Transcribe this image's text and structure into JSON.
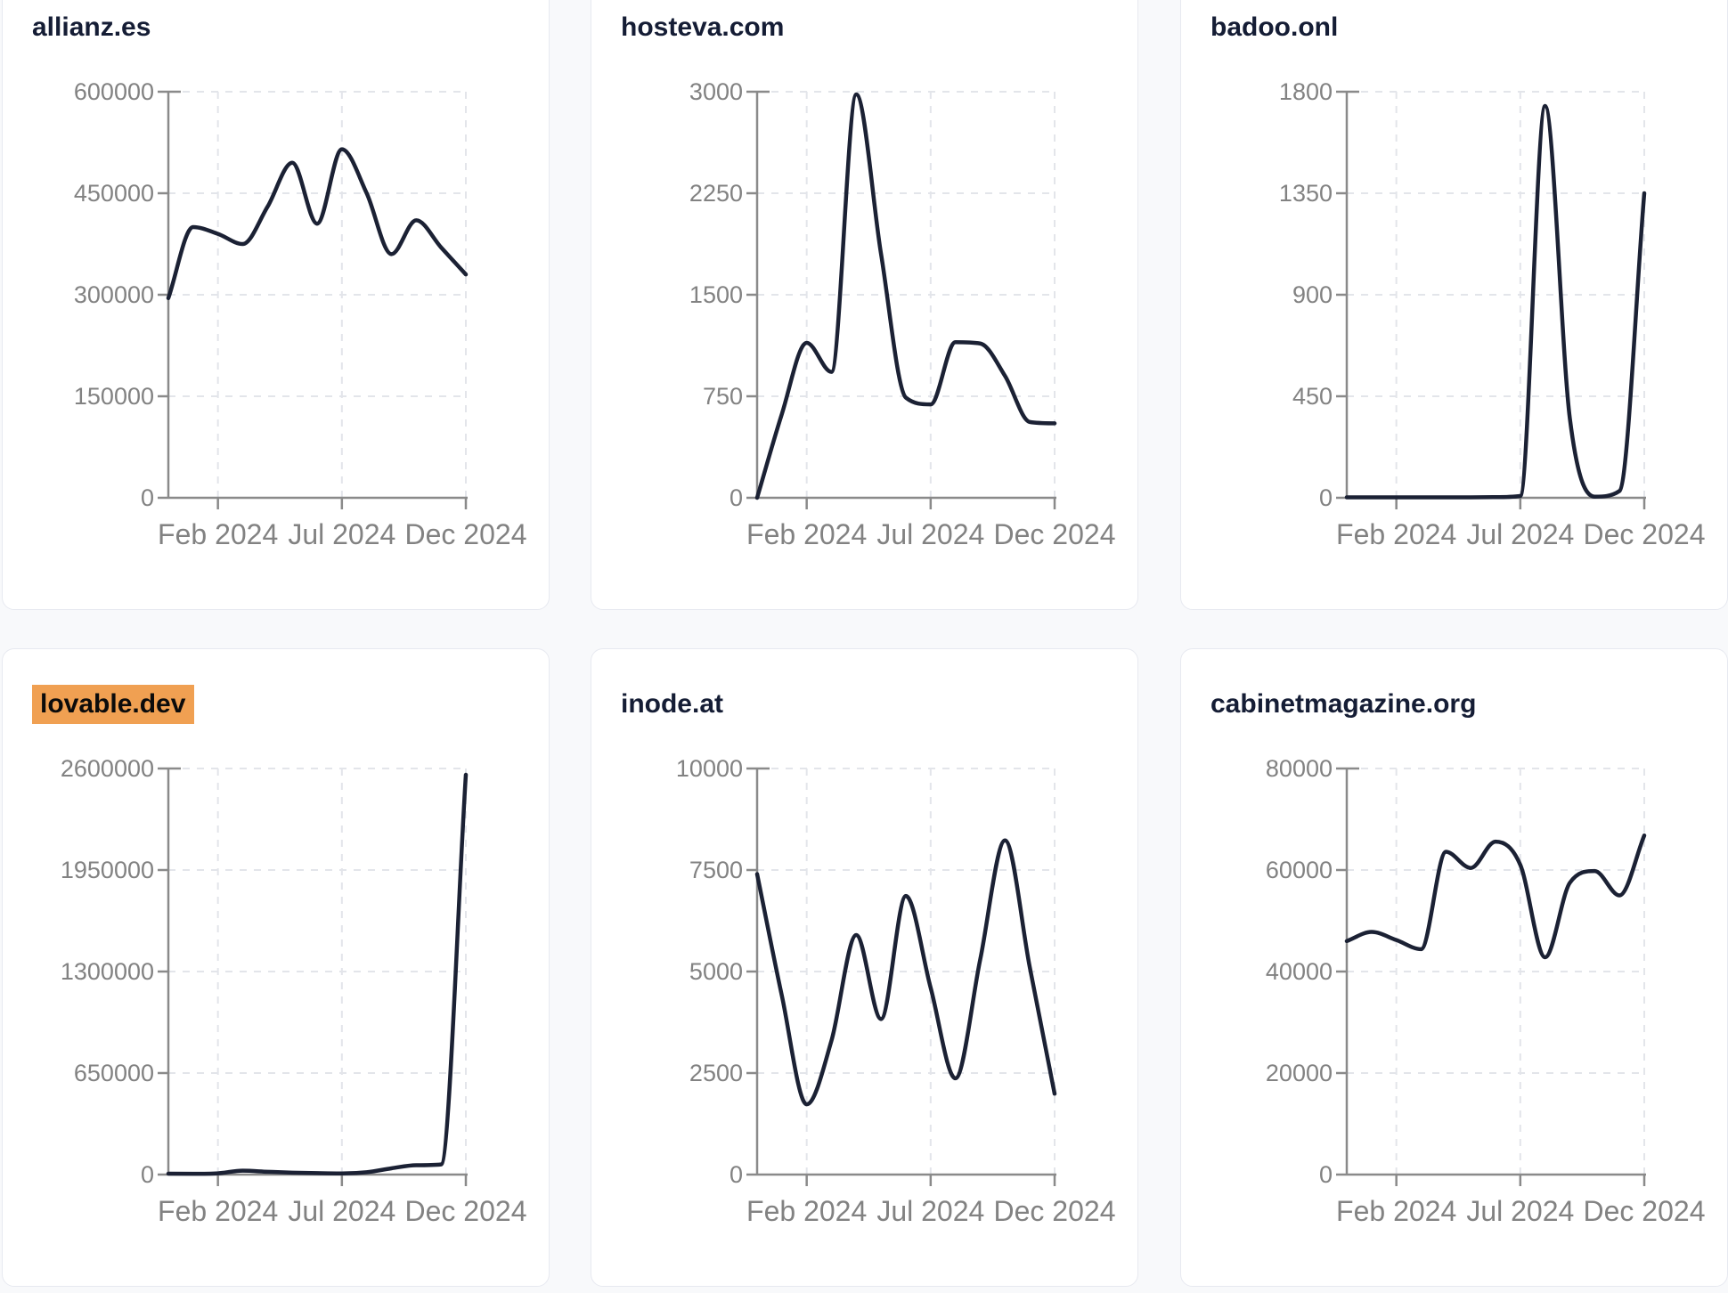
{
  "page": {
    "background_color": "#f8f9fb",
    "card_background": "#ffffff",
    "card_border_color": "#e7e9f0",
    "title_color": "#151d35",
    "highlight_color": "#f0a052",
    "line_color": "#1b2134",
    "axis_color": "#8a8a8a",
    "grid_color": "#e3e5ea",
    "tick_label_color": "#828282"
  },
  "months": [
    "Dec 2023",
    "Jan 2024",
    "Feb 2024",
    "Mar 2024",
    "Apr 2024",
    "May 2024",
    "Jun 2024",
    "Jul 2024",
    "Aug 2024",
    "Sep 2024",
    "Oct 2024",
    "Nov 2024",
    "Dec 2024"
  ],
  "chart_data": [
    {
      "type": "line",
      "title": "allianz.es",
      "title_highlighted": false,
      "x": [
        "Dec 2023",
        "Jan 2024",
        "Feb 2024",
        "Mar 2024",
        "Apr 2024",
        "May 2024",
        "Jun 2024",
        "Jul 2024",
        "Aug 2024",
        "Sep 2024",
        "Oct 2024",
        "Nov 2024",
        "Dec 2024"
      ],
      "values": [
        295000,
        400000,
        390000,
        375000,
        430000,
        495000,
        405000,
        515000,
        450000,
        360000,
        410000,
        370000,
        330000
      ],
      "ylim": [
        0,
        600000
      ],
      "y_ticks": [
        0,
        150000,
        300000,
        450000,
        600000
      ],
      "x_tick_labels": [
        "Feb 2024",
        "Jul 2024",
        "Dec 2024"
      ],
      "x_tick_months": [
        2,
        7,
        12
      ],
      "grid": "dashed",
      "legend": "none"
    },
    {
      "type": "line",
      "title": "hosteva.com",
      "title_highlighted": false,
      "x": [
        "Dec 2023",
        "Jan 2024",
        "Feb 2024",
        "Mar 2024",
        "Apr 2024",
        "May 2024",
        "Jun 2024",
        "Jul 2024",
        "Aug 2024",
        "Sep 2024",
        "Oct 2024",
        "Nov 2024",
        "Dec 2024"
      ],
      "values": [
        0,
        620,
        1145,
        930,
        2980,
        1800,
        740,
        690,
        1150,
        1140,
        900,
        560,
        550
      ],
      "ylim": [
        0,
        3000
      ],
      "y_ticks": [
        0,
        750,
        1500,
        2250,
        3000
      ],
      "x_tick_labels": [
        "Feb 2024",
        "Jul 2024",
        "Dec 2024"
      ],
      "x_tick_months": [
        2,
        7,
        12
      ],
      "grid": "dashed",
      "legend": "none"
    },
    {
      "type": "line",
      "title": "badoo.onl",
      "title_highlighted": false,
      "x": [
        "Dec 2023",
        "Jan 2024",
        "Feb 2024",
        "Mar 2024",
        "Apr 2024",
        "May 2024",
        "Jun 2024",
        "Jul 2024",
        "Aug 2024",
        "Sep 2024",
        "Oct 2024",
        "Nov 2024",
        "Dec 2024"
      ],
      "values": [
        2,
        2,
        2,
        2,
        2,
        2,
        3,
        8,
        1737,
        350,
        5,
        30,
        1350
      ],
      "ylim": [
        0,
        1800
      ],
      "y_ticks": [
        0,
        450,
        900,
        1350,
        1800
      ],
      "x_tick_labels": [
        "Feb 2024",
        "Jul 2024",
        "Dec 2024"
      ],
      "x_tick_months": [
        2,
        7,
        12
      ],
      "grid": "dashed",
      "legend": "none"
    },
    {
      "type": "line",
      "title": "lovable.dev",
      "title_highlighted": true,
      "x": [
        "Dec 2023",
        "Jan 2024",
        "Feb 2024",
        "Mar 2024",
        "Apr 2024",
        "May 2024",
        "Jun 2024",
        "Jul 2024",
        "Aug 2024",
        "Sep 2024",
        "Oct 2024",
        "Nov 2024",
        "Dec 2024"
      ],
      "values": [
        6000,
        5000,
        8000,
        25000,
        18000,
        12000,
        9000,
        7000,
        15000,
        40000,
        60000,
        65000,
        2560000
      ],
      "ylim": [
        0,
        2600000
      ],
      "y_ticks": [
        0,
        650000,
        1300000,
        1950000,
        2600000
      ],
      "x_tick_labels": [
        "Feb 2024",
        "Jul 2024",
        "Dec 2024"
      ],
      "x_tick_months": [
        2,
        7,
        12
      ],
      "grid": "dashed",
      "legend": "none"
    },
    {
      "type": "line",
      "title": "inode.at",
      "title_highlighted": false,
      "x": [
        "Dec 2023",
        "Jan 2024",
        "Feb 2024",
        "Mar 2024",
        "Apr 2024",
        "May 2024",
        "Jun 2024",
        "Jul 2024",
        "Aug 2024",
        "Sep 2024",
        "Oct 2024",
        "Nov 2024",
        "Dec 2024"
      ],
      "values": [
        7400,
        4400,
        1730,
        3300,
        5900,
        3830,
        6860,
        4600,
        2370,
        5300,
        8230,
        5100,
        1990
      ],
      "ylim": [
        0,
        10000
      ],
      "y_ticks": [
        0,
        2500,
        5000,
        7500,
        10000
      ],
      "x_tick_labels": [
        "Feb 2024",
        "Jul 2024",
        "Dec 2024"
      ],
      "x_tick_months": [
        2,
        7,
        12
      ],
      "grid": "dashed",
      "legend": "none"
    },
    {
      "type": "line",
      "title": "cabinetmagazine.org",
      "title_highlighted": false,
      "x": [
        "Dec 2023",
        "Jan 2024",
        "Feb 2024",
        "Mar 2024",
        "Apr 2024",
        "May 2024",
        "Jun 2024",
        "Jul 2024",
        "Aug 2024",
        "Sep 2024",
        "Oct 2024",
        "Nov 2024",
        "Dec 2024"
      ],
      "values": [
        46000,
        47800,
        46200,
        44400,
        63600,
        60400,
        65600,
        61000,
        42800,
        57500,
        59800,
        55000,
        66800
      ],
      "ylim": [
        0,
        80000
      ],
      "y_ticks": [
        0,
        20000,
        40000,
        60000,
        80000
      ],
      "x_tick_labels": [
        "Feb 2024",
        "Jul 2024",
        "Dec 2024"
      ],
      "x_tick_months": [
        2,
        7,
        12
      ],
      "grid": "dashed",
      "legend": "none"
    }
  ]
}
